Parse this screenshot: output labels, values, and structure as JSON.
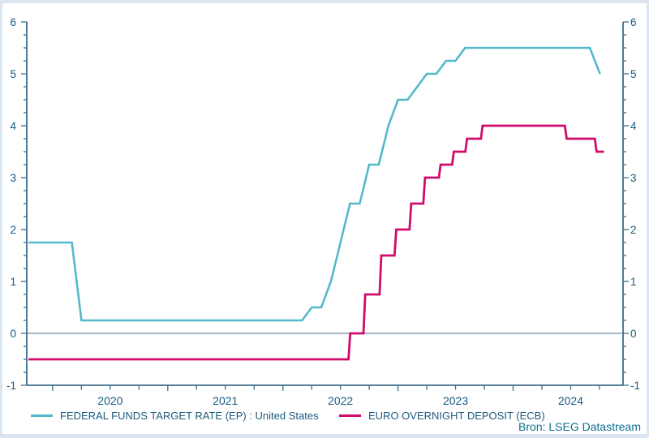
{
  "chart_data": {
    "type": "line",
    "title": "",
    "source": "Bron: LSEG Datastream",
    "x_axis": {
      "range": [
        2019.775,
        2024.955
      ],
      "tick_step_years": 0.25,
      "year_labels": [
        "2020",
        "2021",
        "2022",
        "2023",
        "2024"
      ],
      "grid": false
    },
    "y_axis": {
      "range": [
        -1,
        6
      ],
      "major_step": 1,
      "minor_step": 0.25,
      "labels": [
        "-1",
        "0",
        "1",
        "2",
        "3",
        "4",
        "5",
        "6"
      ],
      "dual_axis": true,
      "grid": false
    },
    "zero_line": true,
    "legend_position": "bottom",
    "series": [
      {
        "name": "FEDERAL FUNDS TARGET RATE (EP) : United States",
        "color": "#53b9ca",
        "stroke_width": 2.6,
        "points": [
          [
            2019.79,
            1.75
          ],
          [
            2020.167,
            1.75
          ],
          [
            2020.25,
            0.25
          ],
          [
            2022.167,
            0.25
          ],
          [
            2022.25,
            0.5
          ],
          [
            2022.333,
            0.5
          ],
          [
            2022.417,
            1.0
          ],
          [
            2022.5,
            1.75
          ],
          [
            2022.583,
            2.5
          ],
          [
            2022.667,
            2.5
          ],
          [
            2022.75,
            3.25
          ],
          [
            2022.833,
            3.25
          ],
          [
            2022.917,
            4.0
          ],
          [
            2023.0,
            4.5
          ],
          [
            2023.083,
            4.5
          ],
          [
            2023.167,
            4.75
          ],
          [
            2023.25,
            5.0
          ],
          [
            2023.333,
            5.0
          ],
          [
            2023.417,
            5.25
          ],
          [
            2023.5,
            5.25
          ],
          [
            2023.583,
            5.5
          ],
          [
            2024.667,
            5.5
          ],
          [
            2024.755,
            5.0
          ]
        ]
      },
      {
        "name": "EURO OVERNIGHT DEPOSIT (ECB)",
        "color": "#cf0c6c",
        "stroke_width": 2.8,
        "points": [
          [
            2019.79,
            -0.5
          ],
          [
            2022.57,
            -0.5
          ],
          [
            2022.585,
            0.0
          ],
          [
            2022.7,
            0.0
          ],
          [
            2022.715,
            0.75
          ],
          [
            2022.84,
            0.75
          ],
          [
            2022.855,
            1.5
          ],
          [
            2022.97,
            1.5
          ],
          [
            2022.985,
            2.0
          ],
          [
            2023.1,
            2.0
          ],
          [
            2023.115,
            2.5
          ],
          [
            2023.22,
            2.5
          ],
          [
            2023.235,
            3.0
          ],
          [
            2023.355,
            3.0
          ],
          [
            2023.37,
            3.25
          ],
          [
            2023.47,
            3.25
          ],
          [
            2023.485,
            3.5
          ],
          [
            2023.585,
            3.5
          ],
          [
            2023.6,
            3.75
          ],
          [
            2023.72,
            3.75
          ],
          [
            2023.735,
            4.0
          ],
          [
            2024.45,
            4.0
          ],
          [
            2024.465,
            3.75
          ],
          [
            2024.71,
            3.75
          ],
          [
            2024.725,
            3.5
          ],
          [
            2024.79,
            3.5
          ]
        ]
      }
    ]
  },
  "colors": {
    "page_background": "#dce6f1",
    "panel_background": "#ffffff",
    "axis": "#3b6d8c",
    "tick": "#3b6d8c",
    "zero_line": "#45718d",
    "axis_label_text": "#155a80",
    "legend_text": "#1c5a7d",
    "source_text": "#0e6f8e",
    "series_fed": "#53b9ca",
    "series_ecb": "#cf0c6c"
  }
}
